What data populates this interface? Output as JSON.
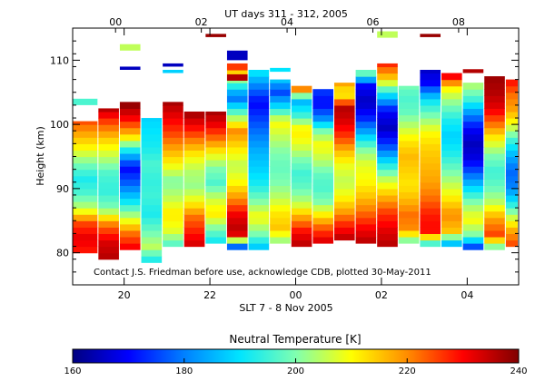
{
  "chart_data": {
    "type": "heatmap",
    "title": "UT days 311 - 312, 2005",
    "xlabel": "SLT 7 - 8 Nov 2005",
    "ylabel": "Height (km)",
    "note": "Contact J.S. Friedman before use, acknowledge CDB, plotted 30-May-2011",
    "colorbar": {
      "title": "Neutral Temperature [K]",
      "min": 160,
      "max": 240,
      "ticks": [
        "160",
        "180",
        "200",
        "220",
        "240"
      ],
      "colors": [
        "#000080",
        "#0000ff",
        "#0080ff",
        "#00e5ff",
        "#7fffb0",
        "#ffff00",
        "#ff8c00",
        "#ff0000",
        "#800000"
      ]
    },
    "x_range_hours": [
      18.8,
      29.2
    ],
    "bottom_ticks": [
      {
        "v": 20,
        "label": "20"
      },
      {
        "v": 22,
        "label": "22"
      },
      {
        "v": 24,
        "label": "00"
      },
      {
        "v": 26,
        "label": "02"
      },
      {
        "v": 28,
        "label": "04"
      }
    ],
    "top_ticks": [
      {
        "v": 19.8,
        "label": "00"
      },
      {
        "v": 21.8,
        "label": "02"
      },
      {
        "v": 23.8,
        "label": "04"
      },
      {
        "v": 25.8,
        "label": "06"
      },
      {
        "v": 27.8,
        "label": "08"
      }
    ],
    "y_range_km": [
      75,
      115
    ],
    "y_ticks": [
      {
        "v": 80,
        "label": "80"
      },
      {
        "v": 90,
        "label": "90"
      },
      {
        "v": 100,
        "label": "100"
      },
      {
        "v": 110,
        "label": "110"
      }
    ],
    "columns": [
      {
        "x0": 18.8,
        "x1": 19.4,
        "bottom": 80.0,
        "top": 100.5,
        "t": [
          228,
          232,
          225,
          205,
          196,
          192,
          200,
          210,
          218,
          226
        ]
      },
      {
        "x0": 19.4,
        "x1": 19.9,
        "bottom": 79.0,
        "top": 102.5,
        "t": [
          236,
          233,
          222,
          200,
          194,
          196,
          205,
          214,
          225,
          238
        ]
      },
      {
        "x0": 19.9,
        "x1": 20.4,
        "bottom": 80.5,
        "top": 103.5,
        "t": [
          232,
          222,
          205,
          190,
          178,
          170,
          190,
          215,
          230,
          240
        ]
      },
      {
        "x0": 20.4,
        "x1": 20.9,
        "bottom": 78.5,
        "top": 101.0,
        "t": [
          190,
          205,
          198,
          192,
          195,
          194,
          196,
          192,
          190,
          188
        ]
      },
      {
        "x0": 20.9,
        "x1": 21.4,
        "bottom": 81.0,
        "top": 103.5,
        "t": [
          195,
          208,
          212,
          205,
          200,
          210,
          218,
          226,
          232,
          238
        ]
      },
      {
        "x0": 21.4,
        "x1": 21.9,
        "bottom": 81.0,
        "top": 102.0,
        "t": [
          234,
          228,
          222,
          210,
          202,
          204,
          210,
          220,
          230,
          238
        ]
      },
      {
        "x0": 21.9,
        "x1": 22.4,
        "bottom": 81.5,
        "top": 102.0,
        "t": [
          190,
          200,
          212,
          206,
          196,
          200,
          210,
          222,
          232,
          238
        ]
      },
      {
        "x0": 22.4,
        "x1": 22.9,
        "bottom": 80.5,
        "top": 109.5,
        "t": [
          165,
          236,
          232,
          220,
          210,
          205,
          212,
          220,
          200,
          178,
          200,
          232
        ]
      },
      {
        "x0": 22.9,
        "x1": 23.4,
        "bottom": 80.5,
        "top": 108.5,
        "t": [
          185,
          200,
          210,
          200,
          192,
          188,
          185,
          180,
          175,
          170,
          180,
          192
        ]
      },
      {
        "x0": 23.4,
        "x1": 23.9,
        "bottom": 81.5,
        "top": 107.0,
        "t": [
          200,
          215,
          212,
          205,
          200,
          198,
          200,
          205,
          210,
          190,
          175,
          190
        ]
      },
      {
        "x0": 23.9,
        "x1": 24.4,
        "bottom": 81.0,
        "top": 106.0,
        "t": [
          236,
          230,
          218,
          205,
          198,
          195,
          200,
          208,
          212,
          195,
          185,
          230
        ]
      },
      {
        "x0": 24.4,
        "x1": 24.9,
        "bottom": 81.5,
        "top": 105.5,
        "t": [
          234,
          225,
          212,
          200,
          196,
          198,
          205,
          210,
          200,
          180,
          170,
          175
        ]
      },
      {
        "x0": 24.9,
        "x1": 25.4,
        "bottom": 82.0,
        "top": 106.5,
        "t": [
          236,
          228,
          218,
          210,
          205,
          208,
          215,
          225,
          232,
          236,
          210,
          220
        ]
      },
      {
        "x0": 25.4,
        "x1": 25.9,
        "bottom": 81.5,
        "top": 108.5,
        "t": [
          236,
          230,
          222,
          215,
          210,
          208,
          200,
          185,
          172,
          165,
          170,
          205
        ]
      },
      {
        "x0": 25.9,
        "x1": 26.4,
        "bottom": 81.0,
        "top": 109.5,
        "t": [
          236,
          232,
          226,
          216,
          205,
          190,
          175,
          165,
          170,
          190,
          215,
          230
        ]
      },
      {
        "x0": 26.4,
        "x1": 26.9,
        "bottom": 81.5,
        "top": 106.0,
        "t": [
          196,
          220,
          222,
          216,
          212,
          214,
          216,
          212,
          205,
          198,
          196,
          200
        ]
      },
      {
        "x0": 26.9,
        "x1": 27.4,
        "bottom": 81.0,
        "top": 108.5,
        "t": [
          188,
          230,
          228,
          222,
          218,
          216,
          214,
          210,
          200,
          190,
          170,
          165
        ]
      },
      {
        "x0": 27.4,
        "x1": 27.9,
        "bottom": 81.0,
        "top": 108.0,
        "t": [
          180,
          215,
          220,
          212,
          205,
          198,
          192,
          188,
          192,
          200,
          210,
          235
        ]
      },
      {
        "x0": 27.9,
        "x1": 28.4,
        "bottom": 80.5,
        "top": 106.5,
        "t": [
          170,
          200,
          210,
          202,
          190,
          178,
          168,
          165,
          170,
          182,
          196,
          205
        ]
      },
      {
        "x0": 28.4,
        "x1": 28.9,
        "bottom": 80.5,
        "top": 107.5,
        "t": [
          195,
          225,
          218,
          205,
          198,
          195,
          200,
          210,
          222,
          232,
          236,
          238
        ]
      },
      {
        "x0": 28.9,
        "x1": 29.2,
        "bottom": 81.0,
        "top": 107.0,
        "t": [
          226,
          218,
          205,
          190,
          180,
          178,
          185,
          195,
          208,
          218,
          222,
          230
        ]
      }
    ],
    "fragments": [
      {
        "x0": 18.8,
        "x1": 19.4,
        "y0": 103.0,
        "y1": 104.0,
        "t": 196
      },
      {
        "x0": 19.9,
        "x1": 20.4,
        "y0": 111.5,
        "y1": 112.5,
        "t": 205
      },
      {
        "x0": 19.9,
        "x1": 20.4,
        "y0": 108.5,
        "y1": 109.0,
        "t": 165
      },
      {
        "x0": 20.9,
        "x1": 21.4,
        "y0": 109.0,
        "y1": 109.5,
        "t": 165
      },
      {
        "x0": 20.9,
        "x1": 21.4,
        "y0": 108.0,
        "y1": 108.5,
        "t": 188
      },
      {
        "x0": 21.9,
        "x1": 22.4,
        "y0": 113.6,
        "y1": 114.1,
        "t": 238
      },
      {
        "x0": 22.4,
        "x1": 22.9,
        "y0": 110.0,
        "y1": 111.5,
        "t": 165
      },
      {
        "x0": 22.4,
        "x1": 22.9,
        "y0": 106.8,
        "y1": 107.8,
        "t": 236
      },
      {
        "x0": 23.4,
        "x1": 23.9,
        "y0": 108.2,
        "y1": 108.8,
        "t": 190
      },
      {
        "x0": 25.9,
        "x1": 26.4,
        "y0": 113.5,
        "y1": 114.5,
        "t": 205
      },
      {
        "x0": 26.9,
        "x1": 27.4,
        "y0": 113.6,
        "y1": 114.1,
        "t": 238
      },
      {
        "x0": 27.9,
        "x1": 28.4,
        "y0": 108.0,
        "y1": 108.6,
        "t": 236
      }
    ]
  }
}
